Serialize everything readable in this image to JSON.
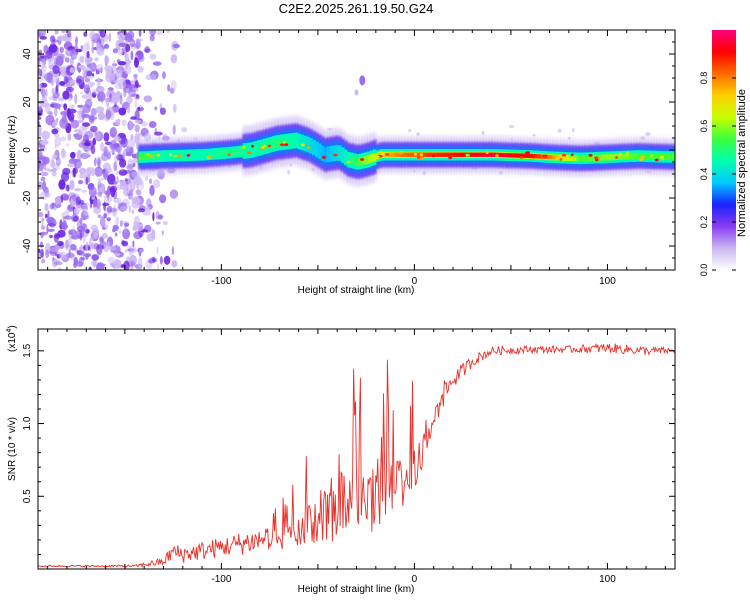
{
  "title": "C2E2.2025.261.19.50.G24",
  "colors": {
    "background": "#ffffff",
    "axis": "#000000",
    "snr_line": "#e8302a",
    "noise": "#7a2ee0",
    "colormap": [
      "#ffffff",
      "#c9b6f2",
      "#8a3cf0",
      "#1a22ff",
      "#00c8ff",
      "#00ffb0",
      "#3cff3c",
      "#c8ff00",
      "#ffd000",
      "#ff6a00",
      "#ff0000",
      "#ff0080"
    ]
  },
  "chart_data": [
    {
      "type": "heatmap",
      "title": "C2E2.2025.261.19.50.G24",
      "xlabel": "Height of straight line (km)",
      "ylabel": "Frequency (Hz)",
      "xlim": [
        -195,
        135
      ],
      "ylim": [
        -50,
        50
      ],
      "x_ticks": [
        -100,
        0,
        100
      ],
      "x_tick_labels": [
        "-100",
        "0",
        "100"
      ],
      "y_ticks": [
        -40,
        -20,
        0,
        20,
        40
      ],
      "y_tick_labels": [
        "-40",
        "-20",
        "0",
        "20",
        "40"
      ],
      "noise_region_x": [
        -195,
        -132
      ],
      "signal_ridge": {
        "x": [
          -143,
          -130,
          -110,
          -95,
          -85,
          -72,
          -62,
          -55,
          -47,
          -40,
          -35,
          -30,
          -25,
          -18,
          -10,
          0,
          20,
          40,
          60,
          70,
          85,
          100,
          115,
          135
        ],
        "freq_hz": [
          -3,
          -2.5,
          -2,
          -1,
          0,
          3,
          4,
          2,
          -2,
          -1,
          -4,
          -5,
          -4,
          -2,
          -2,
          -2,
          -2,
          -2,
          -2.5,
          -3,
          -3.5,
          -3,
          -2.5,
          -3
        ],
        "amplitude": [
          0.55,
          0.45,
          0.45,
          0.5,
          0.45,
          0.5,
          0.45,
          0.4,
          0.35,
          0.4,
          0.45,
          0.55,
          0.6,
          0.7,
          0.8,
          0.85,
          0.9,
          0.95,
          0.9,
          0.8,
          0.55,
          0.6,
          0.55,
          0.55
        ]
      },
      "colorbar": {
        "label": "Normalized spectral amplitude",
        "range": [
          0,
          1
        ],
        "ticks": [
          0.0,
          0.2,
          0.4,
          0.6,
          0.8
        ],
        "tick_labels": [
          "0.0",
          "0.2",
          "0.4",
          "0.6",
          "0.8"
        ]
      }
    },
    {
      "type": "line",
      "xlabel": "Height of straight line (km)",
      "ylabel": "SNR (10 * v/v)",
      "y_scale_label": "(x10",
      "y_scale_exponent": "4",
      "xlim": [
        -195,
        135
      ],
      "ylim": [
        0,
        1.65
      ],
      "x_ticks": [
        -100,
        0,
        100
      ],
      "x_tick_labels": [
        "-100",
        "0",
        "100"
      ],
      "y_ticks": [
        0.5,
        1.0,
        1.5
      ],
      "y_tick_labels": [
        "0.5",
        "1.0",
        "1.5"
      ],
      "series": [
        {
          "name": "SNR",
          "x": [
            -195,
            -145,
            -130,
            -125,
            -120,
            -100,
            -80,
            -65,
            -55,
            -45,
            -38,
            -30,
            -20,
            -10,
            0,
            10,
            20,
            30,
            40,
            60,
            80,
            100,
            120,
            135
          ],
          "y": [
            0.02,
            0.02,
            0.05,
            0.12,
            0.1,
            0.15,
            0.2,
            0.28,
            0.4,
            0.55,
            0.6,
            0.65,
            0.7,
            0.75,
            0.85,
            1.1,
            1.3,
            1.43,
            1.5,
            1.51,
            1.51,
            1.52,
            1.5,
            1.5
          ],
          "noise_amplitude": [
            0.005,
            0.008,
            0.03,
            0.06,
            0.06,
            0.07,
            0.09,
            0.12,
            0.2,
            0.35,
            0.4,
            0.4,
            0.4,
            0.35,
            0.3,
            0.12,
            0.06,
            0.04,
            0.03,
            0.025,
            0.025,
            0.035,
            0.03,
            0.02
          ]
        }
      ]
    }
  ]
}
